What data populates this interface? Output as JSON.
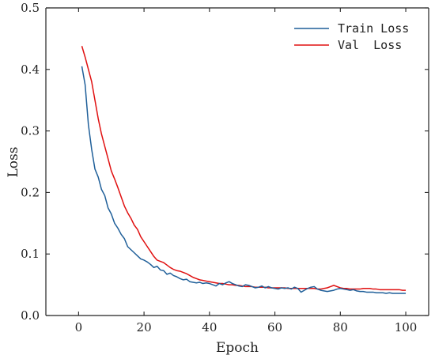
{
  "chart_data": {
    "type": "line",
    "xlabel": "Epoch",
    "ylabel": "Loss",
    "xlim": [
      -10,
      107
    ],
    "ylim": [
      0,
      0.5
    ],
    "xticks": [
      0,
      20,
      40,
      60,
      80,
      100
    ],
    "xtick_labels": [
      "0",
      "20",
      "40",
      "60",
      "80",
      "100"
    ],
    "yticks": [
      0,
      0.1,
      0.2,
      0.3,
      0.4,
      0.5
    ],
    "ytick_labels": [
      "0.0",
      "0.1",
      "0.2",
      "0.3",
      "0.4",
      "0.5"
    ],
    "grid": false,
    "legend_position": "top-right",
    "series": [
      {
        "name": "Train Loss",
        "color": "#1f5f99",
        "x": [
          1,
          2,
          3,
          4,
          5,
          6,
          7,
          8,
          9,
          10,
          11,
          12,
          13,
          14,
          15,
          16,
          17,
          18,
          19,
          20,
          21,
          22,
          23,
          24,
          25,
          26,
          27,
          28,
          29,
          30,
          31,
          32,
          33,
          34,
          35,
          36,
          37,
          38,
          39,
          40,
          41,
          42,
          43,
          44,
          45,
          46,
          47,
          48,
          49,
          50,
          51,
          52,
          53,
          54,
          55,
          56,
          57,
          58,
          59,
          60,
          61,
          62,
          63,
          64,
          65,
          66,
          67,
          68,
          69,
          70,
          71,
          72,
          73,
          74,
          75,
          76,
          77,
          78,
          79,
          80,
          81,
          82,
          83,
          84,
          85,
          86,
          87,
          88,
          89,
          90,
          91,
          92,
          93,
          94,
          95,
          96,
          97,
          98,
          99,
          100
        ],
        "y": [
          0.405,
          0.375,
          0.31,
          0.27,
          0.238,
          0.225,
          0.205,
          0.195,
          0.175,
          0.165,
          0.15,
          0.142,
          0.132,
          0.125,
          0.112,
          0.107,
          0.102,
          0.097,
          0.092,
          0.09,
          0.087,
          0.083,
          0.078,
          0.08,
          0.074,
          0.073,
          0.067,
          0.069,
          0.065,
          0.063,
          0.06,
          0.058,
          0.059,
          0.055,
          0.054,
          0.053,
          0.054,
          0.052,
          0.053,
          0.052,
          0.05,
          0.048,
          0.052,
          0.05,
          0.053,
          0.055,
          0.052,
          0.05,
          0.048,
          0.047,
          0.05,
          0.049,
          0.047,
          0.045,
          0.046,
          0.048,
          0.045,
          0.047,
          0.045,
          0.044,
          0.043,
          0.045,
          0.044,
          0.045,
          0.043,
          0.046,
          0.044,
          0.038,
          0.041,
          0.044,
          0.046,
          0.047,
          0.043,
          0.041,
          0.04,
          0.039,
          0.04,
          0.041,
          0.043,
          0.044,
          0.043,
          0.042,
          0.041,
          0.042,
          0.04,
          0.039,
          0.039,
          0.038,
          0.038,
          0.038,
          0.037,
          0.037,
          0.037,
          0.036,
          0.037,
          0.036,
          0.036,
          0.036,
          0.036,
          0.036
        ]
      },
      {
        "name": "Val  Loss",
        "color": "#e01010",
        "x": [
          1,
          2,
          3,
          4,
          5,
          6,
          7,
          8,
          9,
          10,
          11,
          12,
          13,
          14,
          15,
          16,
          17,
          18,
          19,
          20,
          21,
          22,
          23,
          24,
          25,
          26,
          27,
          28,
          29,
          30,
          31,
          32,
          33,
          34,
          35,
          36,
          37,
          38,
          39,
          40,
          41,
          42,
          43,
          44,
          45,
          46,
          47,
          48,
          49,
          50,
          51,
          52,
          53,
          54,
          55,
          56,
          57,
          58,
          59,
          60,
          61,
          62,
          63,
          64,
          65,
          66,
          67,
          68,
          69,
          70,
          71,
          72,
          73,
          74,
          75,
          76,
          77,
          78,
          79,
          80,
          81,
          82,
          83,
          84,
          85,
          86,
          87,
          88,
          89,
          90,
          91,
          92,
          93,
          94,
          95,
          96,
          97,
          98,
          99,
          100
        ],
        "y": [
          0.438,
          0.42,
          0.4,
          0.38,
          0.35,
          0.32,
          0.295,
          0.275,
          0.255,
          0.235,
          0.222,
          0.208,
          0.193,
          0.178,
          0.167,
          0.158,
          0.147,
          0.14,
          0.128,
          0.12,
          0.112,
          0.104,
          0.096,
          0.09,
          0.088,
          0.086,
          0.082,
          0.078,
          0.075,
          0.073,
          0.072,
          0.07,
          0.068,
          0.065,
          0.062,
          0.06,
          0.058,
          0.057,
          0.056,
          0.055,
          0.054,
          0.053,
          0.052,
          0.052,
          0.051,
          0.05,
          0.05,
          0.049,
          0.049,
          0.048,
          0.047,
          0.047,
          0.047,
          0.046,
          0.046,
          0.046,
          0.046,
          0.045,
          0.045,
          0.045,
          0.045,
          0.045,
          0.045,
          0.044,
          0.044,
          0.044,
          0.044,
          0.044,
          0.044,
          0.044,
          0.044,
          0.044,
          0.043,
          0.043,
          0.044,
          0.045,
          0.047,
          0.049,
          0.047,
          0.045,
          0.044,
          0.044,
          0.043,
          0.043,
          0.043,
          0.043,
          0.044,
          0.044,
          0.044,
          0.043,
          0.043,
          0.042,
          0.042,
          0.042,
          0.042,
          0.042,
          0.042,
          0.042,
          0.041,
          0.041
        ]
      }
    ]
  }
}
